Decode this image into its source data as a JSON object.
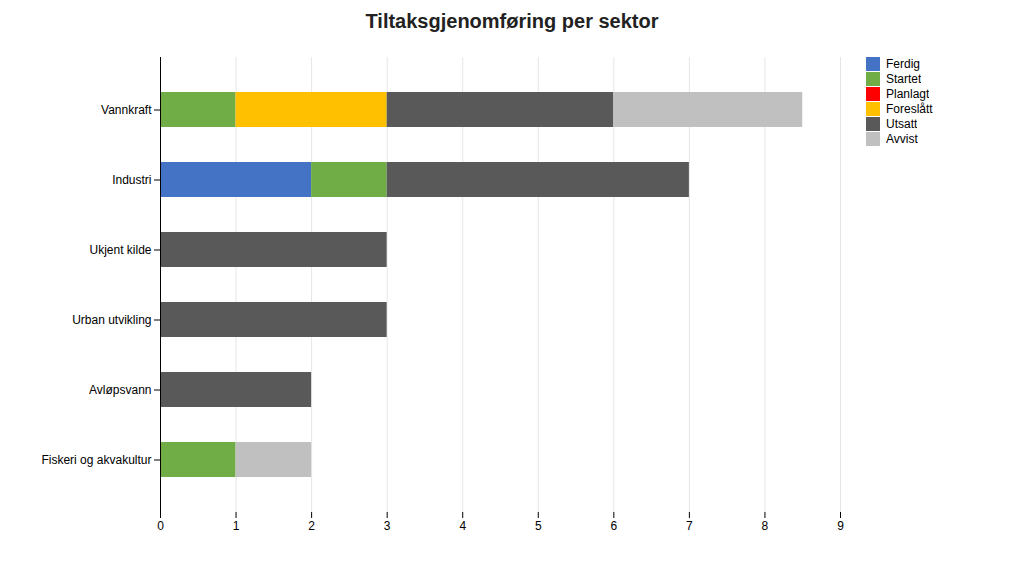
{
  "chart_data": {
    "type": "bar",
    "title": "Tiltaksgjenomføring per sektor",
    "orientation": "horizontal",
    "stacked": true,
    "categories": [
      "Fiskeri og akvakultur",
      "Avløpsvann",
      "Urban utvikling",
      "Ukjent kilde",
      "Industri",
      "Vannkraft"
    ],
    "series": [
      {
        "name": "Ferdig",
        "color": "#4472C4",
        "values": [
          0,
          0,
          0,
          0,
          2,
          0
        ]
      },
      {
        "name": "Startet",
        "color": "#70AD47",
        "values": [
          1,
          0,
          0,
          0,
          1,
          1
        ]
      },
      {
        "name": "Planlagt",
        "color": "#FF0000",
        "values": [
          0,
          0,
          0,
          0,
          0,
          0
        ]
      },
      {
        "name": "Foreslått",
        "color": "#FFC000",
        "values": [
          0,
          0,
          0,
          0,
          0,
          2
        ]
      },
      {
        "name": "Utsatt",
        "color": "#595959",
        "values": [
          0,
          2,
          3,
          3,
          4,
          3
        ]
      },
      {
        "name": "Avvist",
        "color": "#C0C0C0",
        "values": [
          1,
          0,
          0,
          0,
          0,
          2.5
        ]
      }
    ],
    "xlim": [
      0,
      9
    ],
    "xticks": [
      0,
      1,
      2,
      3,
      4,
      5,
      6,
      7,
      8,
      9
    ],
    "grid": true,
    "legend": "right"
  }
}
